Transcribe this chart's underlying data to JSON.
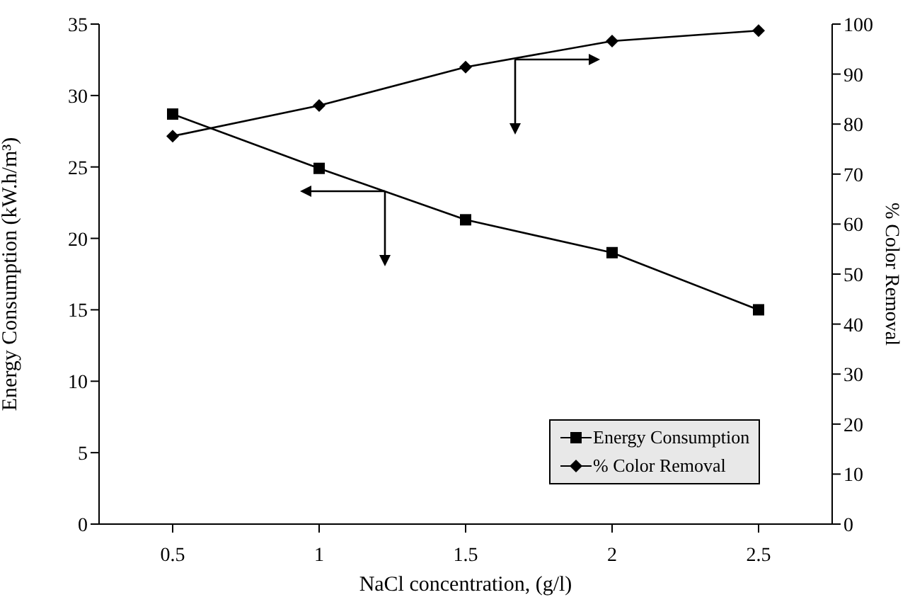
{
  "chart_data": {
    "type": "line",
    "xlabel": "NaCl concentration, (g/l)",
    "ylabel": "Energy Consumption (kW.h/m³)",
    "y2label": "% Color Removal",
    "categories": [
      "0.5",
      "1",
      "1.5",
      "2",
      "2.5"
    ],
    "series": [
      {
        "name": "Energy Consumption",
        "color": "#000000",
        "marker": "square",
        "values": [
          28.7,
          24.9,
          21.3,
          19.0,
          15.0
        ]
      },
      {
        "name": "% Color Removal",
        "color": "#000000",
        "marker": "diamond",
        "axis": "y2",
        "values": [
          77.6,
          83.7,
          91.4,
          96.6,
          98.7
        ]
      }
    ],
    "ylim": [
      0,
      35
    ],
    "yticks": [
      0,
      5,
      10,
      15,
      20,
      25,
      30,
      35
    ],
    "y2lim": [
      0,
      100
    ],
    "y2ticks": [
      0,
      10,
      20,
      30,
      40,
      50,
      60,
      70,
      80,
      90,
      100
    ],
    "legend": "bottom right",
    "grid": false,
    "line_style": "solid"
  }
}
